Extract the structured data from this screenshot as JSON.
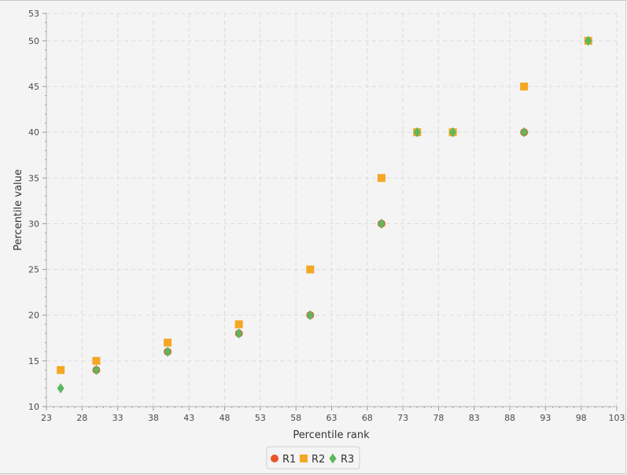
{
  "chart_data": {
    "type": "scatter",
    "xlabel": "Percentile rank",
    "ylabel": "Percentile value",
    "xlim": [
      23,
      103
    ],
    "ylim": [
      10,
      53
    ],
    "x_ticks": [
      23,
      28,
      33,
      38,
      43,
      48,
      53,
      58,
      63,
      68,
      73,
      78,
      83,
      88,
      93,
      98,
      103
    ],
    "y_ticks": [
      10,
      15,
      20,
      25,
      30,
      35,
      40,
      45,
      50,
      53
    ],
    "grid": true,
    "legend_position": "bottom",
    "series": [
      {
        "name": "R1",
        "marker": "circle",
        "color": "#e8552b",
        "points": [
          [
            30,
            14
          ],
          [
            40,
            16
          ],
          [
            50,
            18
          ],
          [
            60,
            20
          ],
          [
            70,
            30
          ],
          [
            75,
            40
          ],
          [
            80,
            40
          ],
          [
            90,
            40
          ],
          [
            99,
            50
          ]
        ]
      },
      {
        "name": "R2",
        "marker": "square",
        "color": "#f5a623",
        "points": [
          [
            25,
            14
          ],
          [
            30,
            15
          ],
          [
            40,
            17
          ],
          [
            50,
            19
          ],
          [
            60,
            25
          ],
          [
            70,
            35
          ],
          [
            75,
            40
          ],
          [
            80,
            40
          ],
          [
            90,
            45
          ],
          [
            99,
            50
          ]
        ]
      },
      {
        "name": "R3",
        "marker": "diamond",
        "color": "#5cb85c",
        "points": [
          [
            25,
            12
          ],
          [
            30,
            14
          ],
          [
            40,
            16
          ],
          [
            50,
            18
          ],
          [
            60,
            20
          ],
          [
            70,
            30
          ],
          [
            75,
            40
          ],
          [
            80,
            40
          ],
          [
            90,
            40
          ],
          [
            99,
            50
          ]
        ]
      }
    ]
  }
}
